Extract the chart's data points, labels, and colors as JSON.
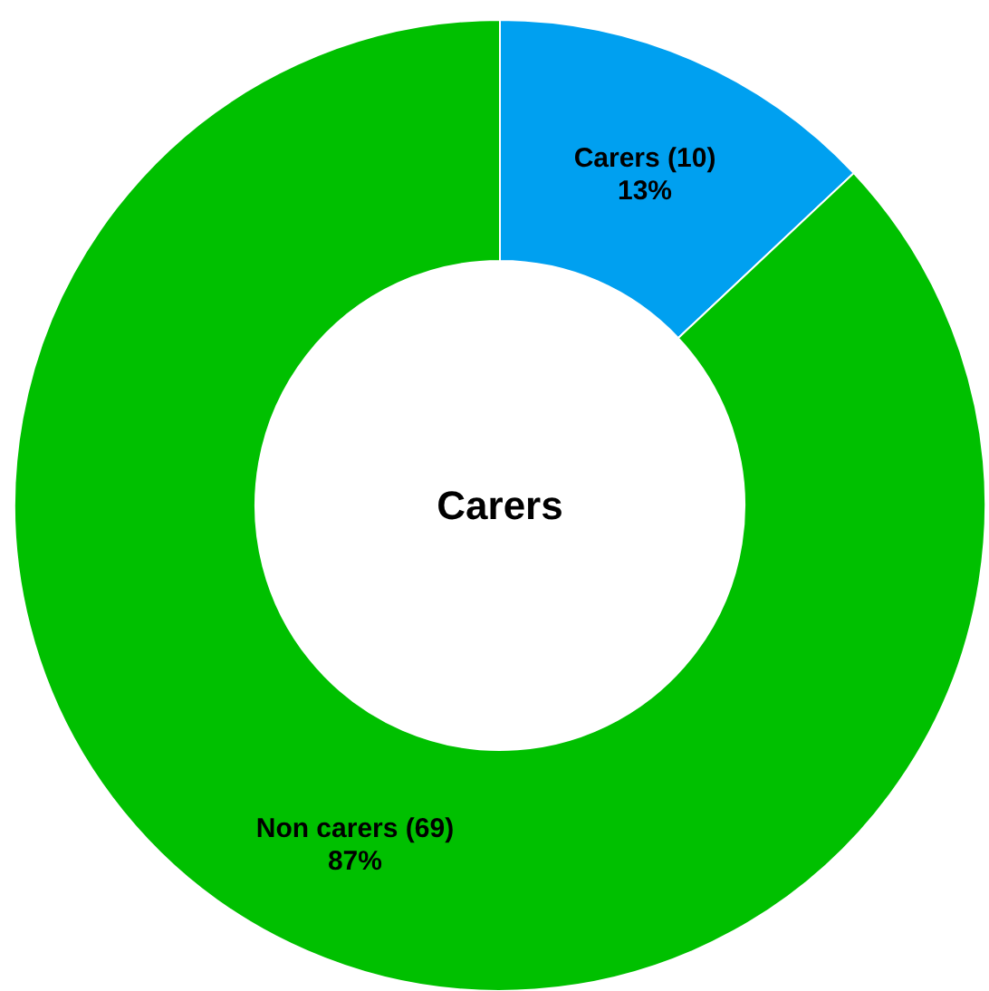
{
  "chart_data": {
    "type": "donut",
    "title": "Carers",
    "categories": [
      "Carers (10)",
      "Non carers (69)"
    ],
    "values": [
      13,
      87
    ],
    "value_labels": [
      "13%",
      "87%"
    ],
    "colors": [
      "#00a0f0",
      "#00c000"
    ]
  }
}
